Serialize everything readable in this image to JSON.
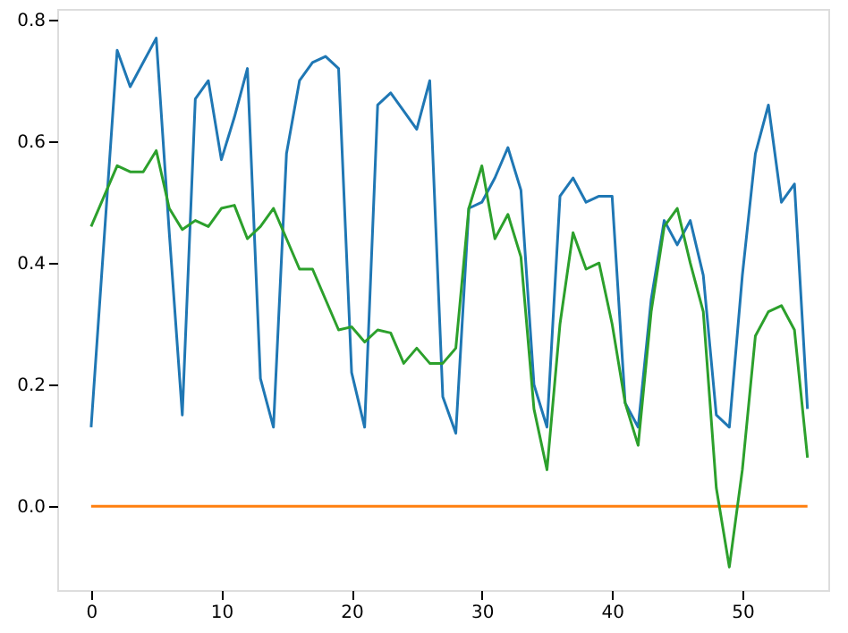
{
  "chart_data": {
    "type": "line",
    "x": [
      0,
      1,
      2,
      3,
      4,
      5,
      6,
      7,
      8,
      9,
      10,
      11,
      12,
      13,
      14,
      15,
      16,
      17,
      18,
      19,
      20,
      21,
      22,
      23,
      24,
      25,
      26,
      27,
      28,
      29,
      30,
      31,
      32,
      33,
      34,
      35,
      36,
      37,
      38,
      39,
      40,
      41,
      42,
      43,
      44,
      45,
      46,
      47,
      48,
      49,
      50,
      51,
      52,
      53,
      54,
      55
    ],
    "series": [
      {
        "color": "#1f77b4",
        "values": [
          0.13,
          0.44,
          0.75,
          0.69,
          0.73,
          0.77,
          0.45,
          0.15,
          0.67,
          0.7,
          0.57,
          0.64,
          0.72,
          0.21,
          0.13,
          0.58,
          0.7,
          0.73,
          0.74,
          0.72,
          0.22,
          0.13,
          0.66,
          0.68,
          0.65,
          0.62,
          0.7,
          0.18,
          0.12,
          0.49,
          0.5,
          0.54,
          0.59,
          0.52,
          0.2,
          0.13,
          0.51,
          0.54,
          0.5,
          0.51,
          0.51,
          0.17,
          0.13,
          0.34,
          0.47,
          0.43,
          0.47,
          0.38,
          0.15,
          0.13,
          0.38,
          0.58,
          0.66,
          0.5,
          0.53,
          0.16
        ]
      },
      {
        "color": "#ff7f0e",
        "values": [
          0,
          0,
          0,
          0,
          0,
          0,
          0,
          0,
          0,
          0,
          0,
          0,
          0,
          0,
          0,
          0,
          0,
          0,
          0,
          0,
          0,
          0,
          0,
          0,
          0,
          0,
          0,
          0,
          0,
          0,
          0,
          0,
          0,
          0,
          0,
          0,
          0,
          0,
          0,
          0,
          0,
          0,
          0,
          0,
          0,
          0,
          0,
          0,
          0,
          0,
          0,
          0,
          0,
          0,
          0,
          0
        ]
      },
      {
        "color": "#2ca02c",
        "values": [
          0.46,
          0.51,
          0.56,
          0.55,
          0.55,
          0.585,
          0.49,
          0.455,
          0.47,
          0.46,
          0.49,
          0.495,
          0.44,
          0.46,
          0.49,
          0.44,
          0.39,
          0.39,
          0.34,
          0.29,
          0.295,
          0.27,
          0.29,
          0.285,
          0.235,
          0.26,
          0.235,
          0.235,
          0.26,
          0.49,
          0.56,
          0.44,
          0.48,
          0.41,
          0.16,
          0.06,
          0.3,
          0.45,
          0.39,
          0.4,
          0.3,
          0.17,
          0.1,
          0.32,
          0.46,
          0.49,
          0.4,
          0.32,
          0.03,
          -0.1,
          0.06,
          0.28,
          0.32,
          0.33,
          0.29,
          0.08
        ]
      }
    ],
    "xlim": [
      -2.6,
      56.6
    ],
    "ylim": [
      -0.138,
      0.818
    ],
    "xticks": [
      0,
      10,
      20,
      30,
      40,
      50
    ],
    "yticks": [
      {
        "value": 0,
        "label": "0.0"
      },
      {
        "value": 0.2,
        "label": "0.2"
      },
      {
        "value": 0.4,
        "label": "0.4"
      },
      {
        "value": 0.6,
        "label": "0.6"
      },
      {
        "value": 0.8,
        "label": "0.8"
      }
    ],
    "grid": false,
    "legend": false,
    "line_style": "solid",
    "marker": "none"
  }
}
